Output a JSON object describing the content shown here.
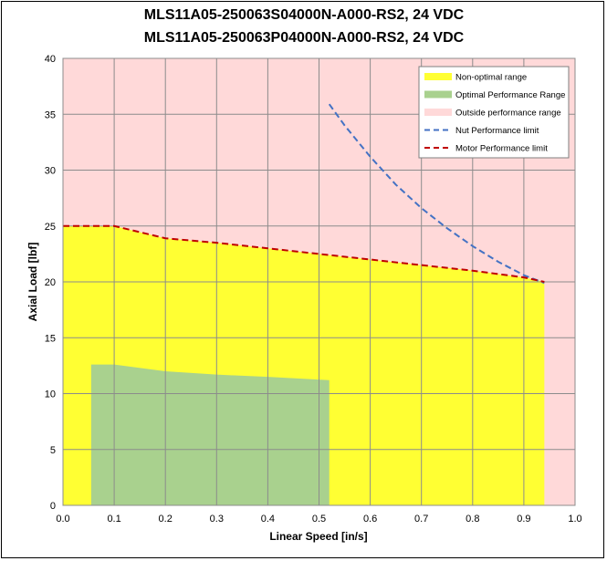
{
  "chart_data": {
    "type": "area",
    "title_lines": [
      "MLS11A05-250063S04000N-A000-RS2, 24 VDC",
      "MLS11A05-250063P04000N-A000-RS2, 24 VDC"
    ],
    "xlabel": "Linear Speed [in/s]",
    "ylabel": "Axial Load [lbf]",
    "xlim": [
      0,
      1.0
    ],
    "ylim": [
      0,
      40
    ],
    "x_ticks": [
      "0.0",
      "0.1",
      "0.2",
      "0.3",
      "0.4",
      "0.5",
      "0.6",
      "0.7",
      "0.8",
      "0.9",
      "1.0"
    ],
    "y_ticks": [
      "0",
      "5",
      "10",
      "15",
      "20",
      "25",
      "30",
      "35",
      "40"
    ],
    "grid": true,
    "legend_position": "top-right",
    "background_color": "#FFD9D9",
    "series": [
      {
        "name": "Non-optimal range",
        "kind": "area",
        "color": "#FFFF33",
        "x": [
          0.0,
          0.1,
          0.2,
          0.3,
          0.4,
          0.5,
          0.6,
          0.7,
          0.8,
          0.9,
          0.94
        ],
        "y": [
          25.0,
          25.0,
          23.9,
          23.5,
          23.0,
          22.5,
          22.0,
          21.5,
          21.0,
          20.4,
          20.0
        ]
      },
      {
        "name": "Optimal Performance Range",
        "kind": "area",
        "color": "#A9D18E",
        "x": [
          0.055,
          0.1,
          0.2,
          0.3,
          0.4,
          0.52
        ],
        "y": [
          12.6,
          12.6,
          12.0,
          11.7,
          11.5,
          11.2
        ]
      },
      {
        "name": "Outside performance range",
        "kind": "area",
        "color": "#FFD9D9",
        "x": [],
        "y": []
      },
      {
        "name": "Nut Performance limit",
        "kind": "dashed-line",
        "color": "#4472C4",
        "x": [
          0.52,
          0.55,
          0.6,
          0.65,
          0.7,
          0.75,
          0.8,
          0.85,
          0.9,
          0.94
        ],
        "y": [
          35.9,
          34.0,
          31.2,
          28.7,
          26.6,
          24.8,
          23.2,
          21.8,
          20.6,
          19.9
        ]
      },
      {
        "name": "Motor Performance limit",
        "kind": "dashed-line",
        "color": "#C00000",
        "x": [
          0.0,
          0.1,
          0.2,
          0.3,
          0.4,
          0.5,
          0.6,
          0.7,
          0.8,
          0.9,
          0.94
        ],
        "y": [
          25.0,
          25.0,
          23.9,
          23.5,
          23.0,
          22.5,
          22.0,
          21.5,
          21.0,
          20.4,
          20.0
        ]
      }
    ]
  }
}
